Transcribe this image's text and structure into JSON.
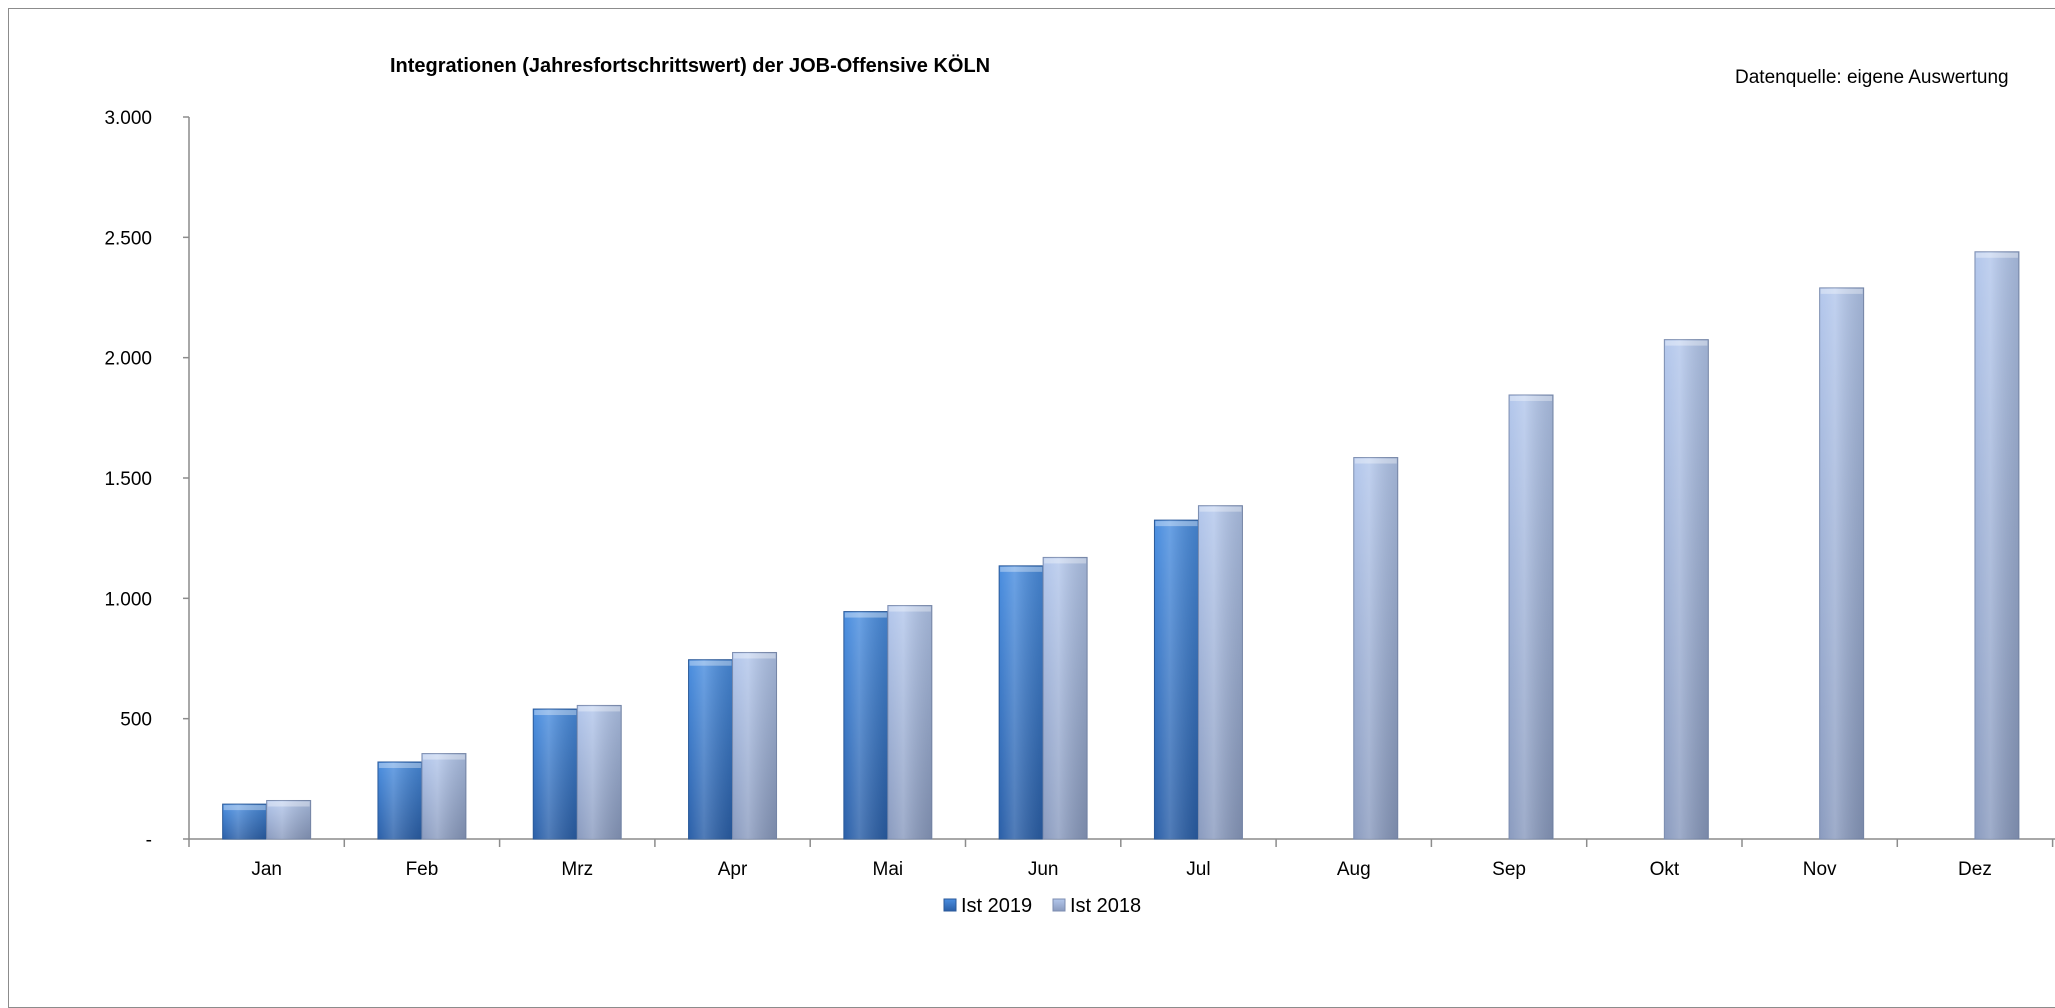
{
  "chart_data": {
    "type": "bar",
    "title": "Integrationen (Jahresfortschrittswert) der JOB-Offensive KÖLN",
    "source_note": "Datenquelle: eigene Auswertung",
    "categories": [
      "Jan",
      "Feb",
      "Mrz",
      "Apr",
      "Mai",
      "Jun",
      "Jul",
      "Aug",
      "Sep",
      "Okt",
      "Nov",
      "Dez"
    ],
    "series": [
      {
        "name": "Ist 2019",
        "color": "#3a72c4",
        "values": [
          145,
          320,
          540,
          745,
          945,
          1135,
          1325,
          null,
          null,
          null,
          null,
          null
        ]
      },
      {
        "name": "Ist 2018",
        "color": "#a9bde4",
        "values": [
          160,
          355,
          555,
          775,
          970,
          1170,
          1385,
          1585,
          1845,
          2075,
          2290,
          2440
        ]
      }
    ],
    "ylim": [
      0,
      3000
    ],
    "yticks": [
      0,
      500,
      1000,
      1500,
      2000,
      2500,
      3000
    ],
    "ytick_labels": [
      "-",
      "500",
      "1.000",
      "1.500",
      "2.000",
      "2.500",
      "3.000"
    ],
    "legend_position": "bottom",
    "grid": false
  }
}
